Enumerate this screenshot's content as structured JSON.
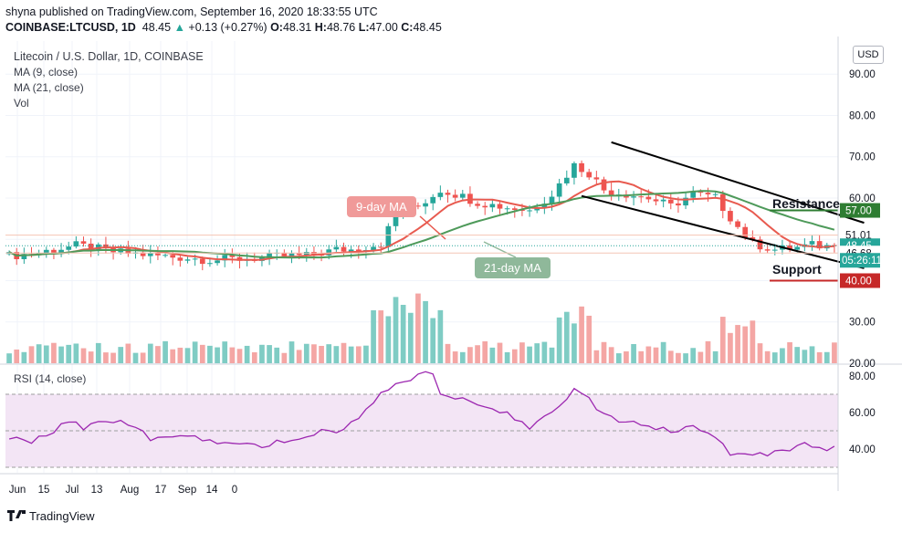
{
  "header": {
    "published": "shyna published on TradingView.com, September 16, 2020 18:33:55 UTC",
    "symbol": "COINBASE:LTCUSD, 1D",
    "last": "48.45",
    "change": "+0.13 (+0.27%)",
    "o_label": "O:",
    "o": "48.31",
    "h_label": "H:",
    "h": "48.76",
    "l_label": "L:",
    "l": "47.00",
    "c_label": "C:",
    "c": "48.45"
  },
  "legend": {
    "title": "Litecoin / U.S. Dollar, 1D, COINBASE",
    "ma9": "MA (9, close)",
    "ma21": "MA (21, close)",
    "vol": "Vol"
  },
  "rsi_label": "RSI (14, close)",
  "currency_button": "USD",
  "annotations": {
    "ma9_label": "9-day MA",
    "ma21_label": "21-day MA",
    "resistance": "Resistance",
    "support": "Support"
  },
  "footer": {
    "brand": "TradingView"
  },
  "colors": {
    "up": "#26a69a",
    "down": "#ef5350",
    "up_vol": "#7fccc4",
    "down_vol": "#f4a6a4",
    "ma9": "#e85a4f",
    "ma21": "#4e9a5a",
    "rsi_line": "#9c27b0",
    "rsi_band": "#f3e5f5",
    "resistance_line": "#2e7d32",
    "support_line": "#c62828"
  },
  "chart_data": [
    {
      "type": "candlestick",
      "ylim": [
        20,
        98
      ],
      "y_ticks": [
        "90.00",
        "80.00",
        "70.00",
        "60.00",
        "30.00",
        "20.00"
      ],
      "x_tick_labels": [
        "Jun",
        "15",
        "Jul",
        "13",
        "Aug",
        "17",
        "Sep",
        "14",
        "0"
      ],
      "price_badges": [
        {
          "value": 57.0,
          "text": "57.00",
          "color": "#2e7d32"
        },
        {
          "value": 51.01,
          "text": "51.01",
          "color": "#ffffff"
        },
        {
          "value": 48.45,
          "text": "48.45",
          "color": "#26a69a"
        },
        {
          "value": 46.68,
          "text": "46.68",
          "color": "#ffffff"
        },
        {
          "value": 40.0,
          "text": "40.00",
          "color": "#c62828"
        }
      ],
      "countdown": "05:26:11",
      "support_level": 40.0,
      "resistance_level": 57.0,
      "channel_upper": [
        [
          "2020-08-16",
          73.5
        ],
        [
          "2020-09-19",
          54.0
        ]
      ],
      "channel_lower": [
        [
          "2020-08-12",
          60.5
        ],
        [
          "2020-09-19",
          43.0
        ]
      ],
      "closes_approx": [
        [
          0,
          46
        ],
        [
          3,
          46.5
        ],
        [
          6,
          47.5
        ],
        [
          9,
          48.5
        ],
        [
          11,
          48
        ],
        [
          14,
          47
        ],
        [
          17,
          46.5
        ],
        [
          20,
          46
        ],
        [
          24,
          45.5
        ],
        [
          27,
          45
        ],
        [
          30,
          45.2
        ],
        [
          34,
          45.5
        ],
        [
          37,
          46
        ],
        [
          40,
          46
        ],
        [
          44,
          47.5
        ],
        [
          46,
          47.5
        ],
        [
          50,
          49
        ],
        [
          52,
          56
        ],
        [
          55,
          58
        ],
        [
          58,
          62
        ],
        [
          60,
          61
        ],
        [
          63,
          59
        ],
        [
          66,
          58
        ],
        [
          70,
          57
        ],
        [
          73,
          61
        ],
        [
          76,
          68
        ],
        [
          78,
          66
        ],
        [
          80,
          62
        ],
        [
          83,
          61
        ],
        [
          86,
          60
        ],
        [
          89,
          58
        ],
        [
          92,
          61
        ],
        [
          95,
          60
        ],
        [
          98,
          53
        ],
        [
          100,
          49
        ],
        [
          103,
          47.5
        ],
        [
          106,
          48
        ],
        [
          108,
          48.6
        ],
        [
          110,
          48.3
        ],
        [
          111,
          48.45
        ]
      ],
      "volume_ylim": [
        0,
        100
      ]
    },
    {
      "type": "line",
      "name": "RSI (14, close)",
      "ylim": [
        27,
        86
      ],
      "y_ticks": [
        "80.00",
        "60.00",
        "40.00"
      ],
      "band": [
        30,
        70
      ],
      "values_approx": [
        [
          0,
          47
        ],
        [
          3,
          44
        ],
        [
          6,
          50
        ],
        [
          8,
          56
        ],
        [
          10,
          52
        ],
        [
          13,
          55
        ],
        [
          16,
          54
        ],
        [
          19,
          46
        ],
        [
          22,
          48
        ],
        [
          25,
          46
        ],
        [
          28,
          44
        ],
        [
          31,
          43
        ],
        [
          34,
          42
        ],
        [
          37,
          45
        ],
        [
          40,
          46
        ],
        [
          42,
          50
        ],
        [
          44,
          49
        ],
        [
          47,
          57
        ],
        [
          50,
          70
        ],
        [
          52,
          75
        ],
        [
          55,
          80
        ],
        [
          57,
          82
        ],
        [
          58,
          70
        ],
        [
          61,
          68
        ],
        [
          64,
          64
        ],
        [
          67,
          60
        ],
        [
          70,
          52
        ],
        [
          73,
          60
        ],
        [
          76,
          72
        ],
        [
          78,
          68
        ],
        [
          80,
          58
        ],
        [
          83,
          55
        ],
        [
          86,
          52
        ],
        [
          89,
          50
        ],
        [
          92,
          52
        ],
        [
          95,
          46
        ],
        [
          97,
          38
        ],
        [
          100,
          37
        ],
        [
          103,
          38
        ],
        [
          105,
          40
        ],
        [
          107,
          43
        ],
        [
          109,
          40
        ],
        [
          111,
          41
        ]
      ]
    }
  ]
}
